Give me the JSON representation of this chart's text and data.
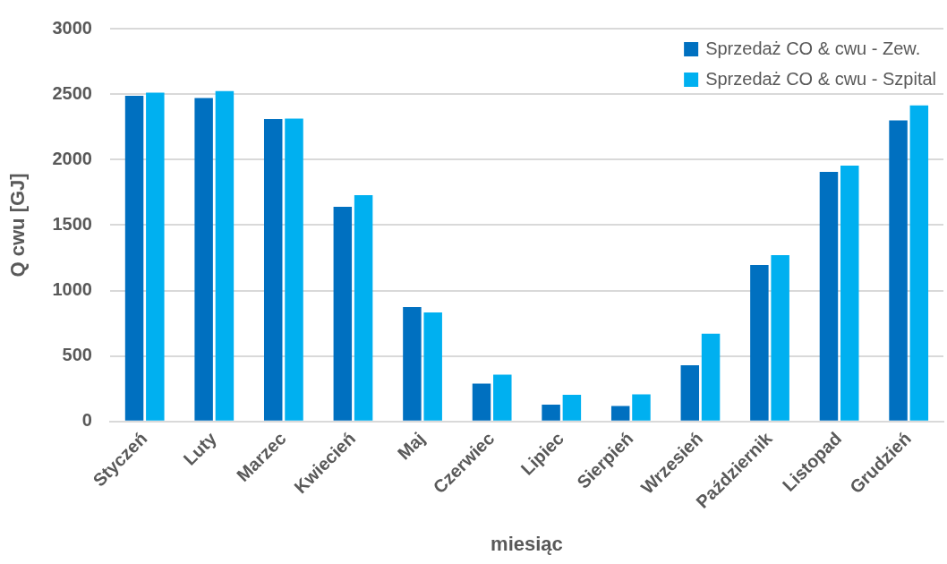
{
  "chart_data": {
    "type": "bar",
    "xlabel": "miesiąc",
    "ylabel": "Q cwu [GJ]",
    "categories": [
      "Styczeń",
      "Luty",
      "Marzec",
      "Kwiecień",
      "Maj",
      "Czerwiec",
      "Lipiec",
      "Sierpień",
      "Wrzesień",
      "Październik",
      "Listopad",
      "Grudzień"
    ],
    "series": [
      {
        "name": "Sprzedaż CO & cwu - Zew.",
        "color": "#0070c0",
        "values": [
          2487,
          2470,
          2309,
          1640,
          873,
          290,
          128,
          119,
          430,
          1196,
          1907,
          2299
        ]
      },
      {
        "name": "Sprzedaż CO & cwu - Szpital",
        "color": "#00b0f0",
        "values": [
          2511,
          2523,
          2313,
          1729,
          832,
          357,
          204,
          207,
          670,
          1270,
          1954,
          2413
        ]
      }
    ],
    "ylim": [
      0,
      3000
    ],
    "yticks": [
      0,
      500,
      1000,
      1500,
      2000,
      2500,
      3000
    ],
    "grid": "y",
    "legend": "top right"
  }
}
